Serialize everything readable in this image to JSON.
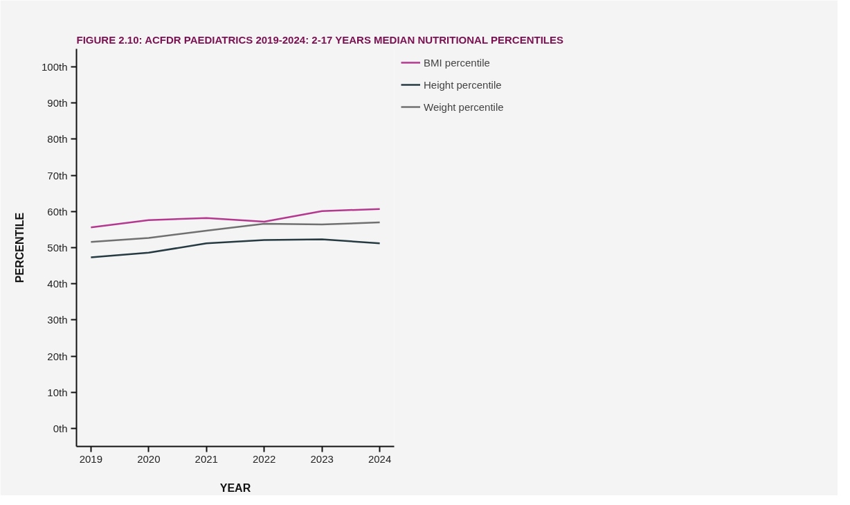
{
  "chart_data": {
    "type": "line",
    "title": "FIGURE 2.10: ACFDR PAEDIATRICS 2019-2024: 2-17 YEARS MEDIAN NUTRITIONAL PERCENTILES",
    "xlabel": "YEAR",
    "ylabel": "PERCENTILE",
    "categories": [
      "2019",
      "2020",
      "2021",
      "2022",
      "2023",
      "2024"
    ],
    "series": [
      {
        "name": "BMI percentile",
        "color": "#b5388f",
        "values": [
          55.6,
          57.6,
          58.2,
          57.2,
          60.1,
          60.7
        ]
      },
      {
        "name": "Height percentile",
        "color": "#263a42",
        "values": [
          47.3,
          48.6,
          51.2,
          52.1,
          52.3,
          51.2
        ]
      },
      {
        "name": "Weight percentile",
        "color": "#707070",
        "values": [
          51.6,
          52.7,
          54.7,
          56.6,
          56.4,
          57.0
        ]
      }
    ],
    "ylim": [
      -5,
      105
    ],
    "yticks": [
      {
        "value": 0,
        "label": "0th"
      },
      {
        "value": 10,
        "label": "10th"
      },
      {
        "value": 20,
        "label": "20th"
      },
      {
        "value": 30,
        "label": "30th"
      },
      {
        "value": 40,
        "label": "40th"
      },
      {
        "value": 50,
        "label": "50th"
      },
      {
        "value": 60,
        "label": "60th"
      },
      {
        "value": 70,
        "label": "70th"
      },
      {
        "value": 80,
        "label": "80th"
      },
      {
        "value": 90,
        "label": "90th"
      },
      {
        "value": 100,
        "label": "100th"
      }
    ],
    "grid": false,
    "legend": "top right",
    "marker": "none",
    "line_style": "solid"
  }
}
